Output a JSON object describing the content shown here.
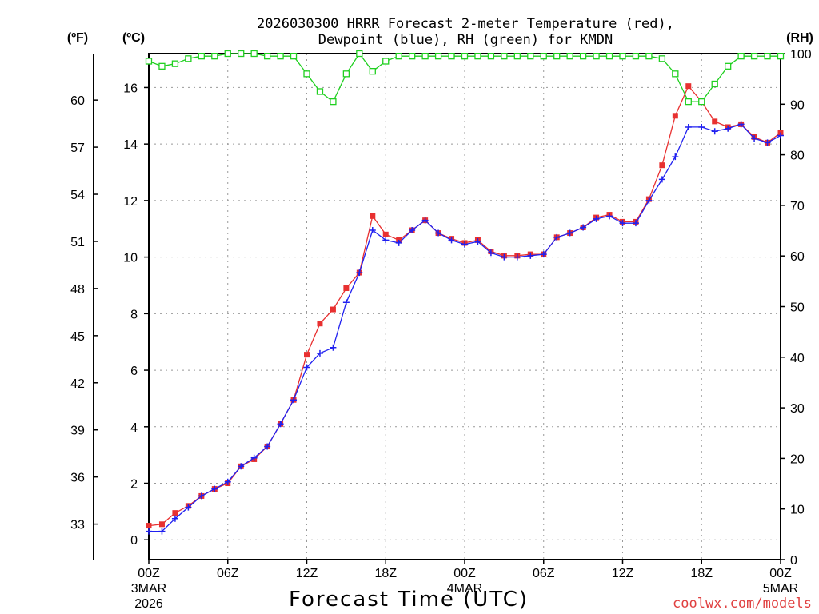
{
  "chart_data": {
    "type": "line",
    "title_line1": "2026030300 HRRR Forecast 2-meter Temperature (red),",
    "title_line2": "Dewpoint (blue), RH (green) for KMDN",
    "xlabel": "Forecast Time (UTC)",
    "credit": "coolwx.com/models",
    "unit_f": "(ºF)",
    "unit_c": "(ºC)",
    "unit_rh": "(RH)",
    "y_left_c_ticks": [
      "0",
      "2",
      "4",
      "6",
      "8",
      "10",
      "12",
      "14",
      "16"
    ],
    "y_left_f_ticks": [
      "33",
      "36",
      "39",
      "42",
      "45",
      "48",
      "51",
      "54",
      "57",
      "60"
    ],
    "y_right_rh_ticks": [
      "0",
      "10",
      "20",
      "30",
      "40",
      "50",
      "60",
      "70",
      "80",
      "90",
      "100"
    ],
    "ylim_c": [
      -0.7,
      17.2
    ],
    "ylim_rh": [
      0,
      100
    ],
    "xlim_hours": [
      0,
      48
    ],
    "x_tick_labels": [
      {
        "hour": 0,
        "label": "00Z",
        "sub1": "3MAR",
        "sub2": "2026"
      },
      {
        "hour": 6,
        "label": "06Z",
        "sub1": "",
        "sub2": ""
      },
      {
        "hour": 12,
        "label": "12Z",
        "sub1": "",
        "sub2": ""
      },
      {
        "hour": 18,
        "label": "18Z",
        "sub1": "",
        "sub2": ""
      },
      {
        "hour": 24,
        "label": "00Z",
        "sub1": "4MAR",
        "sub2": ""
      },
      {
        "hour": 30,
        "label": "06Z",
        "sub1": "",
        "sub2": ""
      },
      {
        "hour": 36,
        "label": "12Z",
        "sub1": "",
        "sub2": ""
      },
      {
        "hour": 42,
        "label": "18Z",
        "sub1": "",
        "sub2": ""
      },
      {
        "hour": 48,
        "label": "00Z",
        "sub1": "5MAR",
        "sub2": ""
      }
    ],
    "grid": true,
    "x_hours": [
      0,
      1,
      2,
      3,
      4,
      5,
      6,
      7,
      8,
      9,
      10,
      11,
      12,
      13,
      14,
      15,
      16,
      17,
      18,
      19,
      20,
      21,
      22,
      23,
      24,
      25,
      26,
      27,
      28,
      29,
      30,
      31,
      32,
      33,
      34,
      35,
      36,
      37,
      38,
      39,
      40,
      41,
      42,
      43,
      44,
      45,
      46,
      47,
      48
    ],
    "series": [
      {
        "name": "Temperature",
        "color": "#e83030",
        "marker": "square-filled",
        "axis": "c",
        "values": [
          0.5,
          0.55,
          0.95,
          1.2,
          1.55,
          1.8,
          2.0,
          2.6,
          2.85,
          3.3,
          4.1,
          4.95,
          6.55,
          7.65,
          8.15,
          8.9,
          9.45,
          11.45,
          10.8,
          10.6,
          10.95,
          11.3,
          10.85,
          10.65,
          10.5,
          10.6,
          10.2,
          10.05,
          10.05,
          10.1,
          10.1,
          10.7,
          10.85,
          11.05,
          11.4,
          11.5,
          11.25,
          11.25,
          12.05,
          13.25,
          15.0,
          16.05,
          15.5,
          14.8,
          14.6,
          14.7,
          14.25,
          14.05,
          14.4
        ]
      },
      {
        "name": "Dewpoint",
        "color": "#2020f0",
        "marker": "plus",
        "axis": "c",
        "values": [
          0.3,
          0.3,
          0.75,
          1.15,
          1.55,
          1.8,
          2.05,
          2.6,
          2.9,
          3.3,
          4.1,
          4.95,
          6.1,
          6.6,
          6.8,
          8.4,
          9.45,
          10.95,
          10.6,
          10.5,
          10.95,
          11.3,
          10.85,
          10.6,
          10.45,
          10.55,
          10.15,
          10.0,
          10.0,
          10.05,
          10.1,
          10.7,
          10.85,
          11.05,
          11.35,
          11.45,
          11.2,
          11.2,
          12.0,
          12.75,
          13.55,
          14.6,
          14.6,
          14.45,
          14.55,
          14.7,
          14.2,
          14.05,
          14.3
        ]
      },
      {
        "name": "RH",
        "color": "#20d020",
        "marker": "square-open",
        "axis": "rh",
        "values": [
          98.5,
          97.5,
          98,
          99,
          99.5,
          99.5,
          100,
          100,
          100,
          99.5,
          99.5,
          99.5,
          96,
          92.5,
          90.5,
          96,
          100,
          96.5,
          98.5,
          99.5,
          99.5,
          99.5,
          99.5,
          99.5,
          99.5,
          99.5,
          99.5,
          99.5,
          99.5,
          99.5,
          99.5,
          99.5,
          99.5,
          99.5,
          99.5,
          99.5,
          99.5,
          99.5,
          99.5,
          99,
          96,
          90.5,
          90.5,
          94,
          97.5,
          99.5,
          99.5,
          99.5,
          99.5
        ]
      }
    ]
  }
}
